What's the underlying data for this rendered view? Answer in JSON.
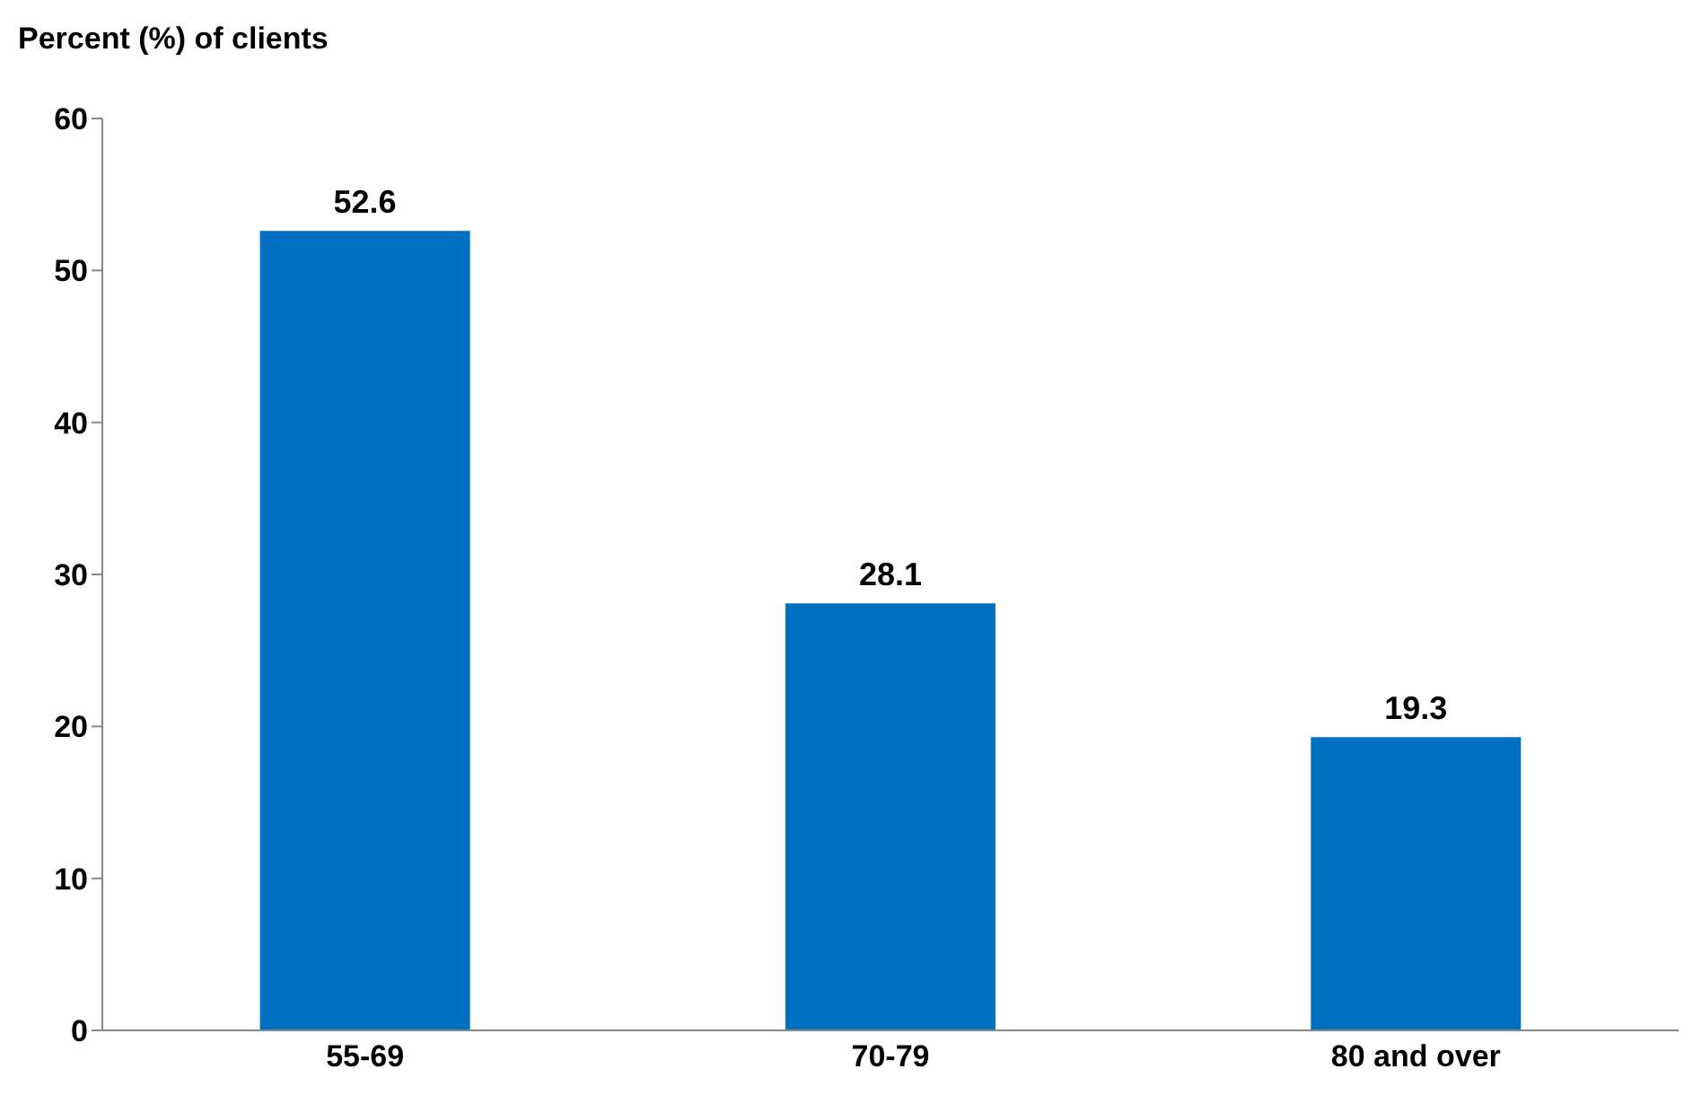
{
  "chart_data": {
    "type": "bar",
    "ylabel": "Percent (%) of clients",
    "categories": [
      "55-69",
      "70-79",
      "80 and over"
    ],
    "values": [
      52.6,
      28.1,
      19.3
    ],
    "color": "#0070c0",
    "ylim": [
      0,
      60
    ],
    "yticks": [
      0,
      10,
      20,
      30,
      40,
      50,
      60
    ],
    "data_labels": true,
    "grid": false,
    "legend": false
  }
}
